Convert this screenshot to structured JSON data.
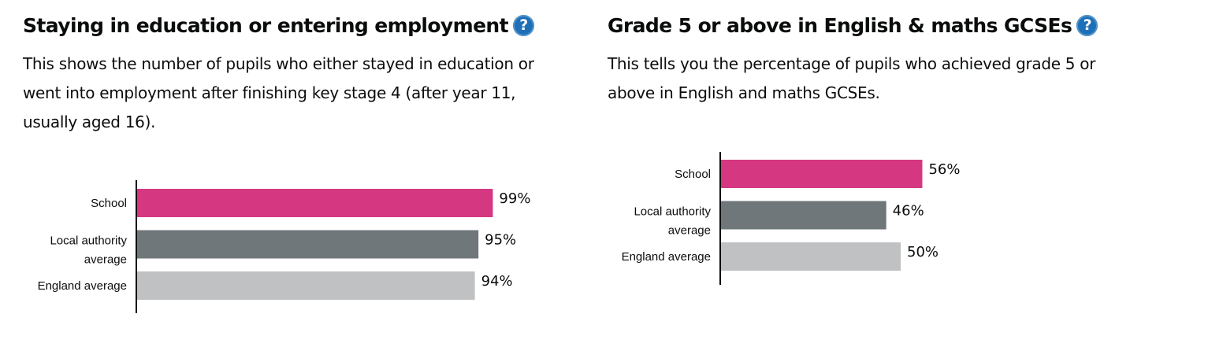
{
  "panels": [
    {
      "title": "Staying in education or entering employment",
      "description": "This shows the number of pupils who either stayed in education or went into employment after finishing key stage 4 (after year 11, usually aged 16).",
      "help_icon": "question-icon"
    },
    {
      "title": "Grade 5 or above in English & maths GCSEs",
      "description": "This tells you the percentage of pupils who achieved grade 5 or above in English and maths GCSEs.",
      "help_icon": "question-icon"
    }
  ],
  "chart_data": [
    {
      "type": "bar",
      "orientation": "horizontal",
      "categories": [
        [
          "School"
        ],
        [
          "Local authority",
          "average"
        ],
        [
          "England average"
        ]
      ],
      "values": [
        99,
        95,
        94
      ],
      "value_labels": [
        "99%",
        "95%",
        "94%"
      ],
      "colors": [
        "#d53880",
        "#6f777b",
        "#bfc1c3"
      ],
      "xlim": [
        0,
        100
      ],
      "grid": false
    },
    {
      "type": "bar",
      "orientation": "horizontal",
      "categories": [
        [
          "School"
        ],
        [
          "Local authority",
          "average"
        ],
        [
          "England average"
        ]
      ],
      "values": [
        56,
        46,
        50
      ],
      "value_labels": [
        "56%",
        "46%",
        "50%"
      ],
      "colors": [
        "#d53880",
        "#6f777b",
        "#bfc1c3"
      ],
      "xlim": [
        0,
        100
      ],
      "grid": false
    }
  ]
}
